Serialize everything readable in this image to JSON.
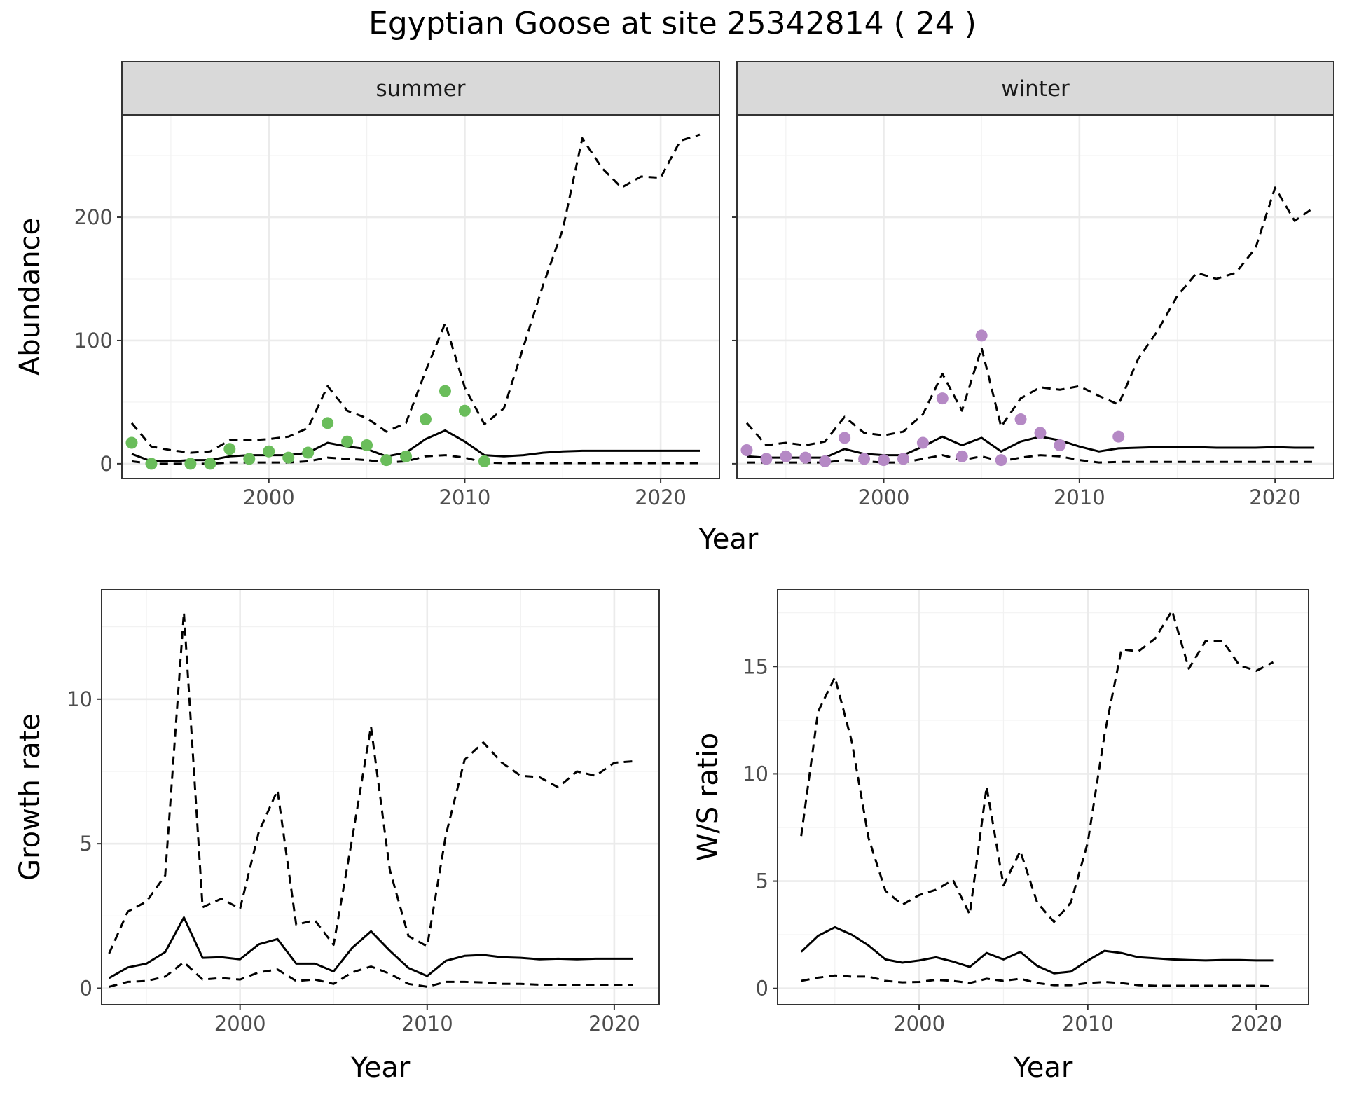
{
  "figure": {
    "title": "Egyptian Goose at site 25342814 ( 24 )"
  },
  "chart_data": [
    {
      "id": "summer",
      "type": "line",
      "strip": "summer",
      "xlabel": "Year",
      "ylabel": "Abundance",
      "xlim": [
        1992.5,
        2023.0
      ],
      "ylim": [
        -12,
        283
      ],
      "xticks": [
        2000,
        2010,
        2020
      ],
      "yticks": [
        0,
        100,
        200
      ],
      "xminor": [
        1995,
        2005,
        2015
      ],
      "yminor": [
        50,
        150,
        250
      ],
      "points_color": "#6ABD5B",
      "points": {
        "x": [
          1993,
          1994,
          1996,
          1997,
          1998,
          1999,
          2000,
          2001,
          2002,
          2003,
          2004,
          2005,
          2006,
          2007,
          2008,
          2009,
          2010,
          2011
        ],
        "y": [
          17,
          0,
          0,
          0,
          12,
          4,
          10,
          5,
          9,
          33,
          18,
          15,
          3,
          6,
          36,
          59,
          43,
          2
        ]
      },
      "series": [
        {
          "name": "mean",
          "dash": "solid",
          "x": [
            1993,
            1994,
            1995,
            1996,
            1997,
            1998,
            1999,
            2000,
            2001,
            2002,
            2003,
            2004,
            2005,
            2006,
            2007,
            2008,
            2009,
            2010,
            2011,
            2012,
            2013,
            2014,
            2015,
            2016,
            2017,
            2018,
            2019,
            2020,
            2021,
            2022
          ],
          "y": [
            8,
            2,
            2,
            3,
            3,
            6,
            7,
            7,
            7,
            9,
            17,
            14,
            12,
            6,
            9,
            20,
            27,
            18,
            7,
            6,
            7,
            9,
            10,
            10.5,
            10.5,
            10.5,
            10.5,
            10.5,
            10.5,
            10.5
          ]
        },
        {
          "name": "upper",
          "dash": "dashed",
          "x": [
            1993,
            1994,
            1995,
            1996,
            1997,
            1998,
            1999,
            2000,
            2001,
            2002,
            2003,
            2004,
            2005,
            2006,
            2007,
            2008,
            2009,
            2010,
            2011,
            2012,
            2013,
            2014,
            2015,
            2016,
            2017,
            2018,
            2019,
            2020,
            2021,
            2022
          ],
          "y": [
            33,
            14,
            11,
            9,
            10,
            19,
            19,
            20,
            22,
            29,
            63,
            43,
            37,
            26,
            33,
            75,
            114,
            62,
            32,
            45,
            95,
            145,
            190,
            264,
            240,
            224,
            233,
            232,
            262,
            267
          ]
        },
        {
          "name": "lower",
          "dash": "dashed",
          "x": [
            1993,
            1994,
            1995,
            1996,
            1997,
            1998,
            1999,
            2000,
            2001,
            2002,
            2003,
            2004,
            2005,
            2006,
            2007,
            2008,
            2009,
            2010,
            2011,
            2012,
            2013,
            2014,
            2015,
            2016,
            2017,
            2018,
            2019,
            2020,
            2021,
            2022
          ],
          "y": [
            2,
            0,
            0,
            0,
            0,
            1,
            1,
            1,
            1,
            2,
            5,
            4,
            3,
            1,
            2,
            6,
            7,
            5,
            1,
            0.5,
            0.5,
            0.5,
            0.5,
            0.5,
            0.5,
            0.5,
            0.5,
            0.5,
            0.5,
            0.5
          ]
        }
      ]
    },
    {
      "id": "winter",
      "type": "line",
      "strip": "winter",
      "xlabel": "Year",
      "ylabel": "",
      "xlim": [
        1992.5,
        2023.0
      ],
      "ylim": [
        -12,
        283
      ],
      "xticks": [
        2000,
        2010,
        2020
      ],
      "yticks": [
        0,
        100,
        200
      ],
      "xminor": [
        1995,
        2005,
        2015
      ],
      "yminor": [
        50,
        150,
        250
      ],
      "points_color": "#B589C5",
      "points": {
        "x": [
          1993,
          1994,
          1995,
          1996,
          1997,
          1998,
          1999,
          2000,
          2001,
          2002,
          2003,
          2004,
          2005,
          2006,
          2007,
          2008,
          2009,
          2012
        ],
        "y": [
          11,
          4,
          6,
          5,
          2,
          21,
          4,
          3,
          4,
          17,
          53,
          6,
          104,
          3,
          36,
          25,
          15,
          22
        ]
      },
      "series": [
        {
          "name": "mean",
          "dash": "solid",
          "x": [
            1993,
            1994,
            1995,
            1996,
            1997,
            1998,
            1999,
            2000,
            2001,
            2002,
            2003,
            2004,
            2005,
            2006,
            2007,
            2008,
            2009,
            2010,
            2011,
            2012,
            2013,
            2014,
            2015,
            2016,
            2017,
            2018,
            2019,
            2020,
            2021,
            2022
          ],
          "y": [
            6,
            5,
            5,
            5,
            5,
            12,
            8,
            7,
            7,
            14,
            22,
            15,
            21,
            10,
            18,
            22,
            19,
            14,
            10,
            12.5,
            13,
            13.5,
            13.5,
            13.5,
            13,
            13,
            13,
            13.5,
            13,
            13
          ]
        },
        {
          "name": "upper",
          "dash": "dashed",
          "x": [
            1993,
            1994,
            1995,
            1996,
            1997,
            1998,
            1999,
            2000,
            2001,
            2002,
            2003,
            2004,
            2005,
            2006,
            2007,
            2008,
            2009,
            2010,
            2011,
            2012,
            2013,
            2014,
            2015,
            2016,
            2017,
            2018,
            2019,
            2020,
            2021,
            2022
          ],
          "y": [
            33,
            15,
            17,
            15,
            18,
            38,
            25,
            23,
            26,
            40,
            73,
            43,
            94,
            30,
            53,
            62,
            60,
            63,
            55,
            48,
            85,
            108,
            136,
            155,
            150,
            155,
            175,
            224,
            197,
            208
          ]
        },
        {
          "name": "lower",
          "dash": "dashed",
          "x": [
            1993,
            1994,
            1995,
            1996,
            1997,
            1998,
            1999,
            2000,
            2001,
            2002,
            2003,
            2004,
            2005,
            2006,
            2007,
            2008,
            2009,
            2010,
            2011,
            2012,
            2013,
            2014,
            2015,
            2016,
            2017,
            2018,
            2019,
            2020,
            2021,
            2022
          ],
          "y": [
            1,
            1,
            1,
            1,
            1,
            3,
            2,
            1,
            1,
            4,
            7,
            3,
            6,
            2,
            5,
            7,
            6,
            3,
            1,
            1.5,
            1.5,
            1.5,
            1.5,
            1.5,
            1.5,
            1.5,
            1.5,
            1.5,
            1.5,
            1.5
          ]
        }
      ]
    },
    {
      "id": "growth",
      "type": "line",
      "xlabel": "Year",
      "ylabel": "Growth rate",
      "xlim": [
        1992.6,
        2022.4
      ],
      "ylim": [
        -0.57,
        13.8
      ],
      "xticks": [
        2000,
        2010,
        2020
      ],
      "yticks": [
        0,
        5,
        10
      ],
      "xminor": [
        1995,
        2005,
        2015
      ],
      "yminor": [
        2.5,
        7.5,
        12.5
      ],
      "series": [
        {
          "name": "mean",
          "dash": "solid",
          "x": [
            1993,
            1994,
            1995,
            1996,
            1997,
            1998,
            1999,
            2000,
            2001,
            2002,
            2003,
            2004,
            2005,
            2006,
            2007,
            2008,
            2009,
            2010,
            2011,
            2012,
            2013,
            2014,
            2015,
            2016,
            2017,
            2018,
            2019,
            2020,
            2021
          ],
          "y": [
            0.35,
            0.72,
            0.85,
            1.25,
            2.45,
            1.05,
            1.07,
            1.0,
            1.52,
            1.7,
            0.85,
            0.85,
            0.58,
            1.4,
            1.97,
            1.3,
            0.7,
            0.42,
            0.95,
            1.12,
            1.15,
            1.07,
            1.05,
            1.0,
            1.02,
            1.0,
            1.02,
            1.02,
            1.02
          ]
        },
        {
          "name": "upper",
          "dash": "dashed",
          "x": [
            1993,
            1994,
            1995,
            1996,
            1997,
            1998,
            1999,
            2000,
            2001,
            2002,
            2003,
            2004,
            2005,
            2006,
            2007,
            2008,
            2009,
            2010,
            2011,
            2012,
            2013,
            2014,
            2015,
            2016,
            2017,
            2018,
            2019,
            2020,
            2021
          ],
          "y": [
            1.2,
            2.65,
            3.0,
            3.9,
            13.0,
            2.8,
            3.1,
            2.75,
            5.4,
            6.85,
            2.2,
            2.35,
            1.5,
            5.2,
            9.05,
            4.1,
            1.8,
            1.45,
            5.3,
            7.9,
            8.5,
            7.8,
            7.35,
            7.3,
            6.95,
            7.5,
            7.35,
            7.8,
            7.85
          ]
        },
        {
          "name": "lower",
          "dash": "dashed",
          "x": [
            1993,
            1994,
            1995,
            1996,
            1997,
            1998,
            1999,
            2000,
            2001,
            2002,
            2003,
            2004,
            2005,
            2006,
            2007,
            2008,
            2009,
            2010,
            2011,
            2012,
            2013,
            2014,
            2015,
            2016,
            2017,
            2018,
            2019,
            2020,
            2021
          ],
          "y": [
            0.05,
            0.22,
            0.25,
            0.4,
            0.9,
            0.3,
            0.35,
            0.3,
            0.55,
            0.65,
            0.25,
            0.3,
            0.15,
            0.55,
            0.75,
            0.5,
            0.15,
            0.05,
            0.22,
            0.22,
            0.2,
            0.15,
            0.15,
            0.12,
            0.12,
            0.12,
            0.12,
            0.12,
            0.12
          ]
        }
      ]
    },
    {
      "id": "ws",
      "type": "line",
      "xlabel": "Year",
      "ylabel": "W/S ratio",
      "xlim": [
        1991.6,
        2023.1
      ],
      "ylim": [
        -0.76,
        18.6
      ],
      "xticks": [
        2000,
        2010,
        2020
      ],
      "yticks": [
        0,
        5,
        10,
        15
      ],
      "xminor": [
        1995,
        2005,
        2015
      ],
      "yminor": [
        2.5,
        7.5,
        12.5,
        17.5
      ],
      "series": [
        {
          "name": "mean",
          "dash": "solid",
          "x": [
            1993,
            1994,
            1995,
            1996,
            1997,
            1998,
            1999,
            2000,
            2001,
            2002,
            2003,
            2004,
            2005,
            2006,
            2007,
            2008,
            2009,
            2010,
            2011,
            2012,
            2013,
            2014,
            2015,
            2016,
            2017,
            2018,
            2019,
            2020,
            2021
          ],
          "y": [
            1.7,
            2.45,
            2.85,
            2.5,
            2.0,
            1.35,
            1.2,
            1.3,
            1.45,
            1.25,
            1.0,
            1.65,
            1.35,
            1.7,
            1.05,
            0.7,
            0.78,
            1.3,
            1.75,
            1.65,
            1.45,
            1.4,
            1.35,
            1.32,
            1.3,
            1.32,
            1.32,
            1.3,
            1.3
          ]
        },
        {
          "name": "upper",
          "dash": "dashed",
          "x": [
            1993,
            1994,
            1995,
            1996,
            1997,
            1998,
            1999,
            2000,
            2001,
            2002,
            2003,
            2004,
            2005,
            2006,
            2007,
            2008,
            2009,
            2010,
            2011,
            2012,
            2013,
            2014,
            2015,
            2016,
            2017,
            2018,
            2019,
            2020,
            2021
          ],
          "y": [
            7.1,
            12.9,
            14.5,
            11.5,
            7.0,
            4.55,
            3.9,
            4.35,
            4.6,
            5.05,
            3.45,
            9.4,
            4.8,
            6.4,
            4.0,
            3.1,
            4.0,
            6.8,
            11.85,
            15.8,
            15.7,
            16.3,
            17.6,
            14.9,
            16.2,
            16.2,
            15.05,
            14.8,
            15.2
          ]
        },
        {
          "name": "lower",
          "dash": "dashed",
          "x": [
            1993,
            1994,
            1995,
            1996,
            1997,
            1998,
            1999,
            2000,
            2001,
            2002,
            2003,
            2004,
            2005,
            2006,
            2007,
            2008,
            2009,
            2010,
            2011,
            2012,
            2013,
            2014,
            2015,
            2016,
            2017,
            2018,
            2019,
            2020,
            2021
          ],
          "y": [
            0.35,
            0.5,
            0.6,
            0.55,
            0.55,
            0.35,
            0.28,
            0.3,
            0.4,
            0.35,
            0.25,
            0.45,
            0.35,
            0.45,
            0.25,
            0.15,
            0.15,
            0.25,
            0.3,
            0.25,
            0.15,
            0.12,
            0.12,
            0.12,
            0.12,
            0.12,
            0.12,
            0.12,
            0.1
          ]
        }
      ]
    }
  ],
  "shared_labels": {
    "top_xlabel": "Year"
  }
}
